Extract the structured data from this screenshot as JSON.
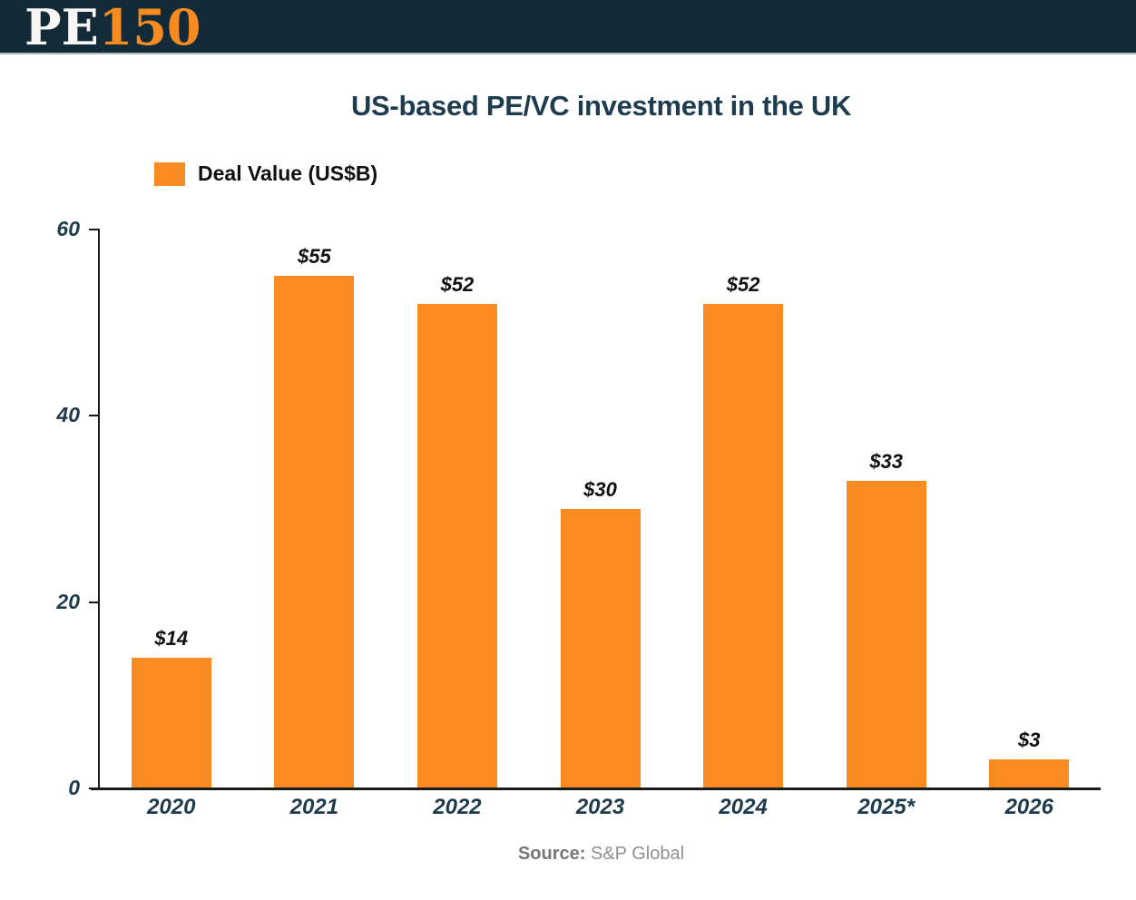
{
  "header": {
    "logo_pe": "PE",
    "logo_150": "150"
  },
  "chart_data": {
    "type": "bar",
    "title": "US-based PE/VC investment in the UK",
    "legend": [
      {
        "label": "Deal Value (US$B)",
        "color": "#FA8B23"
      }
    ],
    "legend_position": "top-left",
    "categories": [
      "2020",
      "2021",
      "2022",
      "2023",
      "2024",
      "2025*",
      "2026"
    ],
    "values": [
      14,
      55,
      52,
      30,
      52,
      33,
      3
    ],
    "value_labels": [
      "$14",
      "$55",
      "$52",
      "$30",
      "$52",
      "$33",
      "$3"
    ],
    "xlabel": "",
    "ylabel": "",
    "ylim": [
      0,
      60
    ],
    "yticks": [
      0,
      20,
      40,
      60
    ],
    "grid": false
  },
  "footer": {
    "source_label": "Source:",
    "source_value": "S&P Global"
  },
  "colors": {
    "bar": "#FA8B23",
    "header_bg": "#132A38",
    "title_text": "#1D3C50",
    "axis_text": "#1E3A4D",
    "label_text": "#111111",
    "axis_line": "#1A1A1A",
    "source_text": "#8F8F8F"
  }
}
